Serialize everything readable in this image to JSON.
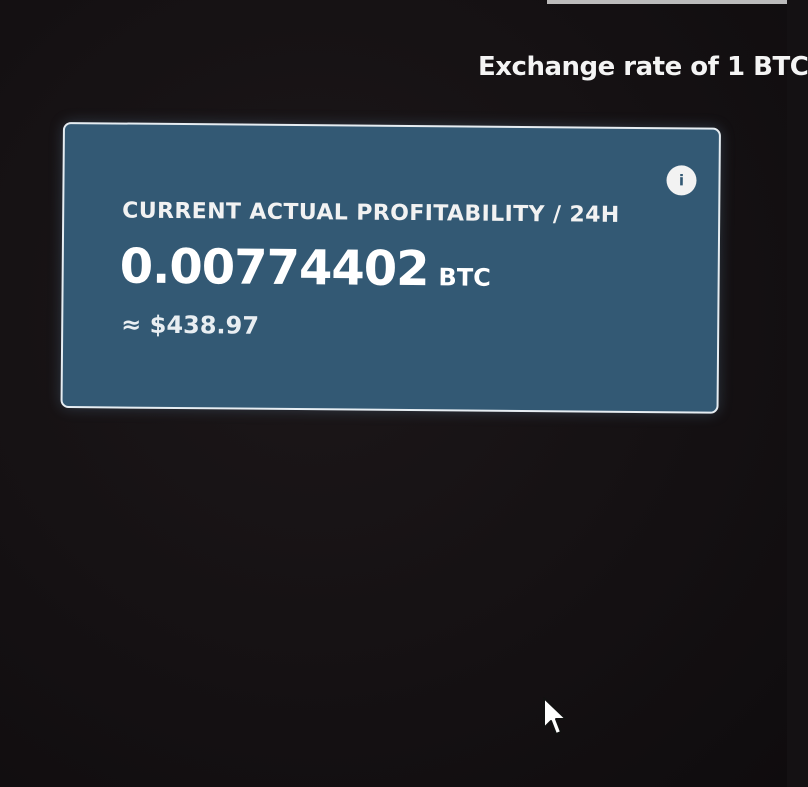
{
  "header": {
    "exchange_rate_label": "Exchange rate of 1 BTC"
  },
  "card": {
    "title": "CURRENT ACTUAL PROFITABILITY / 24H",
    "amount": "0.00774402",
    "unit": "BTC",
    "usd_approx": "≈ $438.97",
    "info_icon_glyph": "i"
  },
  "colors": {
    "background": "#141113",
    "card": "#335974",
    "card_border": "#e6edf2",
    "text": "#ffffff"
  },
  "icons": [
    "info-icon",
    "mouse-pointer-icon"
  ]
}
